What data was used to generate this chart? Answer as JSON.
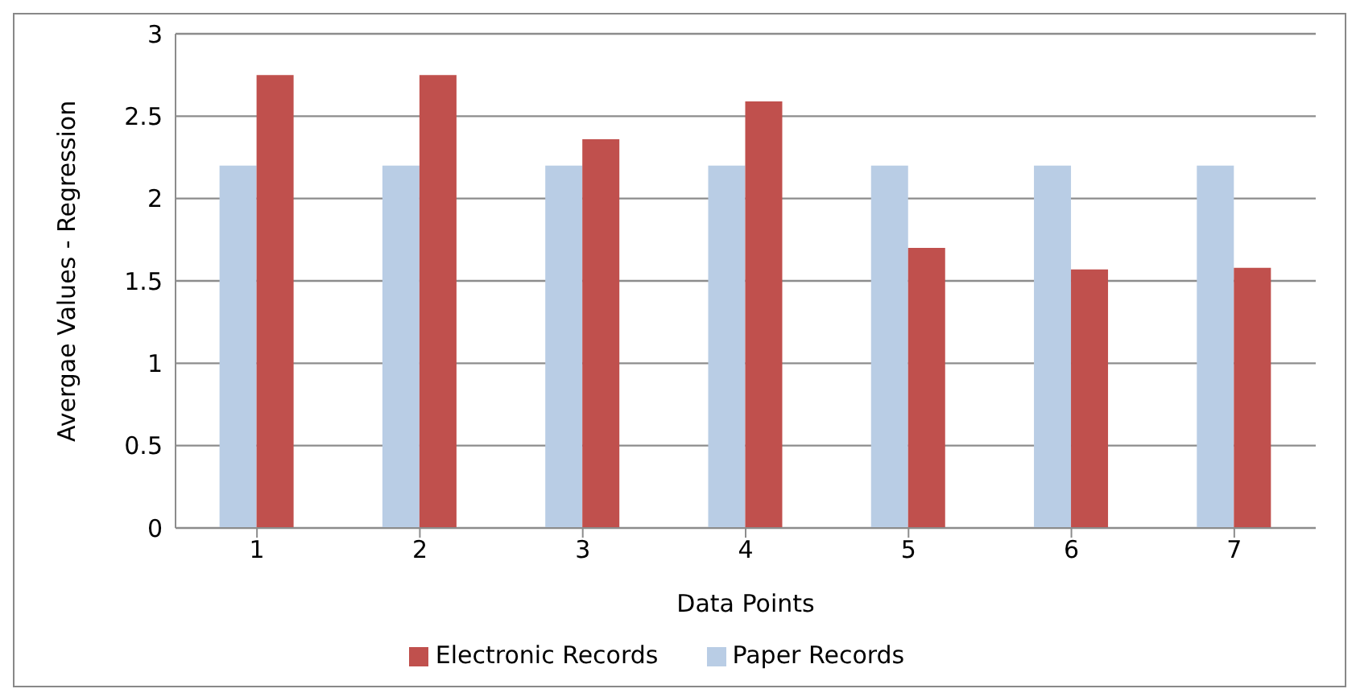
{
  "chart_data": {
    "type": "bar",
    "xlabel": "Data Points",
    "ylabel": "Avergae Values - Regression",
    "categories": [
      "1",
      "2",
      "3",
      "4",
      "5",
      "6",
      "7"
    ],
    "series": [
      {
        "name": "Paper Records",
        "color": "#b9cde5",
        "values": [
          2.2,
          2.2,
          2.2,
          2.2,
          2.2,
          2.2,
          2.2
        ]
      },
      {
        "name": "Electronic Records",
        "color": "#c0504d",
        "values": [
          2.75,
          2.75,
          2.36,
          2.59,
          1.7,
          1.57,
          1.58
        ]
      }
    ],
    "ylim": [
      0,
      3
    ],
    "yticks": [
      0,
      0.5,
      1,
      1.5,
      2,
      2.5,
      3
    ],
    "grid": "y",
    "legend": "bottom"
  }
}
